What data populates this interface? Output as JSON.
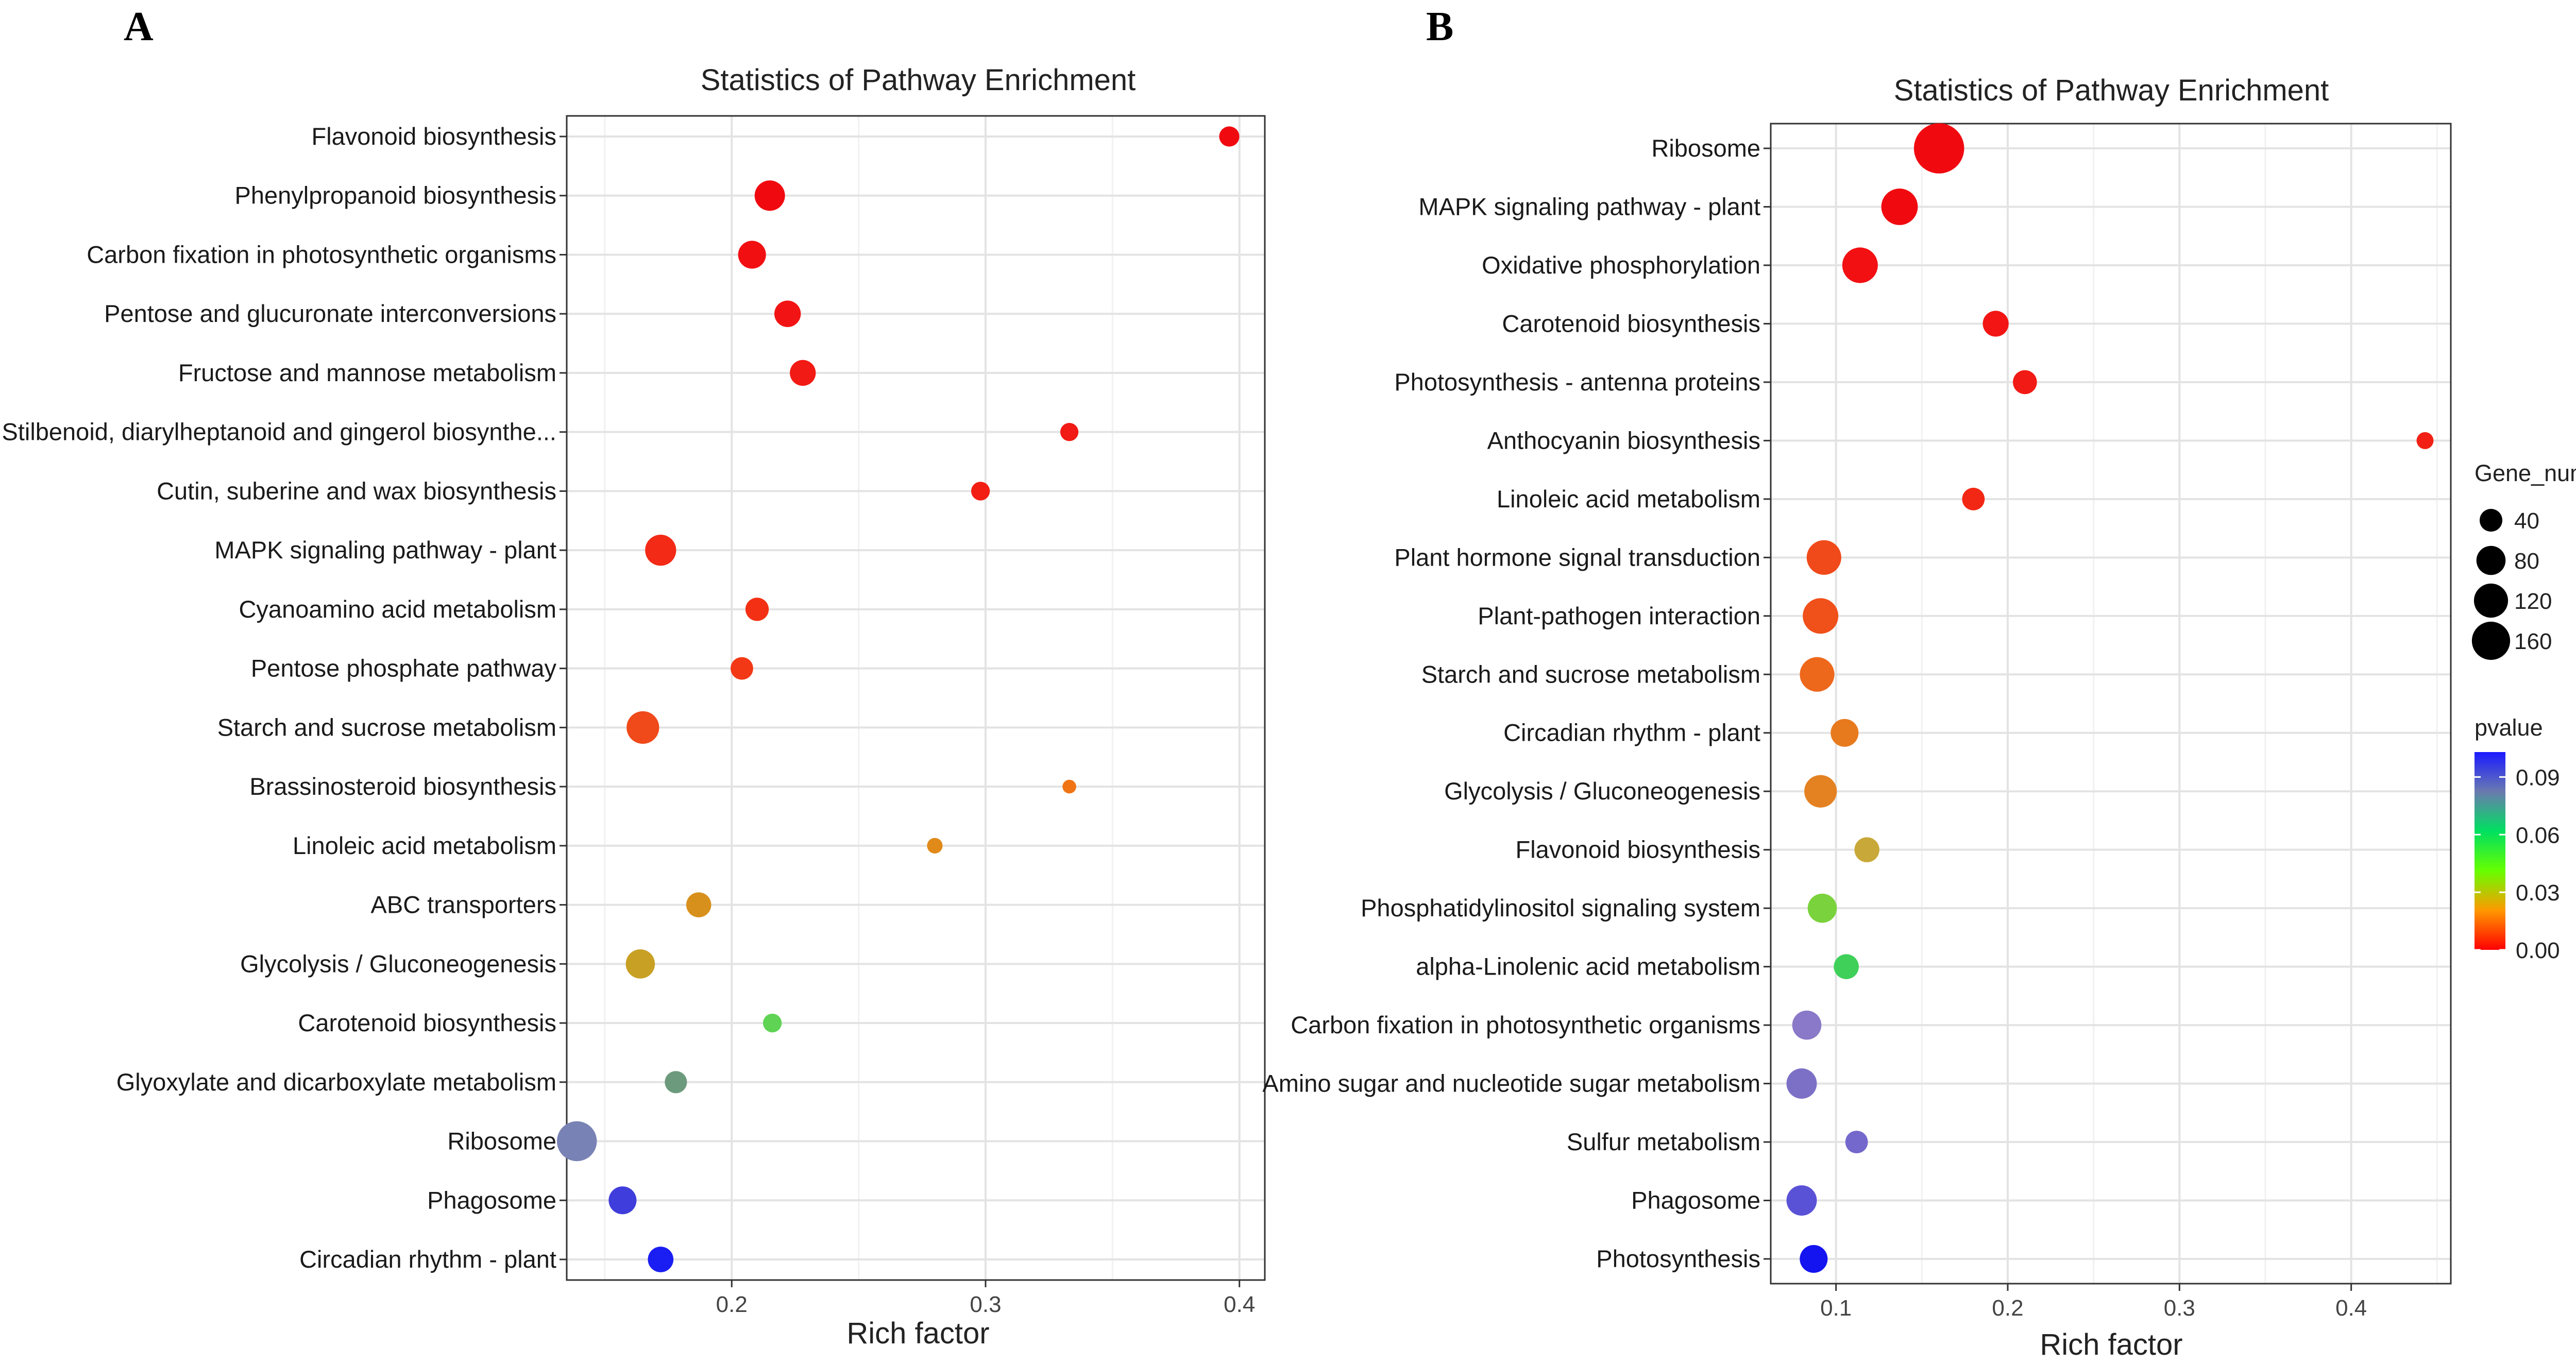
{
  "chart_data": [
    {
      "panel": "A",
      "type": "scatter",
      "title": "Statistics of Pathway Enrichment",
      "xlabel": "Rich factor",
      "ylabel": "",
      "xlim": [
        0.135,
        0.41
      ],
      "xticks": [
        0.2,
        0.3,
        0.4
      ],
      "xtick_labels": [
        "0.2",
        "0.3",
        "0.4"
      ],
      "grid": true,
      "points": [
        {
          "label": "Flavonoid biosynthesis",
          "x": 0.396,
          "gene_number": 12,
          "pvalue": 0.0,
          "color": "#f00a10"
        },
        {
          "label": "Phenylpropanoid biosynthesis",
          "x": 0.215,
          "gene_number": 45,
          "pvalue": 0.0,
          "color": "#f00a10"
        },
        {
          "label": "Carbon fixation in photosynthetic organisms",
          "x": 0.208,
          "gene_number": 35,
          "pvalue": 0.001,
          "color": "#f20f12"
        },
        {
          "label": "Pentose and glucuronate interconversions",
          "x": 0.222,
          "gene_number": 30,
          "pvalue": 0.001,
          "color": "#f21414"
        },
        {
          "label": "Fructose and mannose metabolism",
          "x": 0.228,
          "gene_number": 28,
          "pvalue": 0.002,
          "color": "#f21a14"
        },
        {
          "label": "Stilbenoid, diarylheptanoid and gingerol biosynthe...",
          "x": 0.333,
          "gene_number": 8,
          "pvalue": 0.002,
          "color": "#f21a14"
        },
        {
          "label": "Cutin, suberine and wax biosynthesis",
          "x": 0.298,
          "gene_number": 9,
          "pvalue": 0.003,
          "color": "#f21e14"
        },
        {
          "label": "MAPK signaling pathway - plant",
          "x": 0.172,
          "gene_number": 48,
          "pvalue": 0.005,
          "color": "#f32a16"
        },
        {
          "label": "Cyanoamino acid metabolism",
          "x": 0.21,
          "gene_number": 20,
          "pvalue": 0.006,
          "color": "#f33014"
        },
        {
          "label": "Pentose phosphate pathway",
          "x": 0.204,
          "gene_number": 18,
          "pvalue": 0.007,
          "color": "#f33816"
        },
        {
          "label": "Starch and sucrose metabolism",
          "x": 0.165,
          "gene_number": 55,
          "pvalue": 0.01,
          "color": "#f04a1a"
        },
        {
          "label": "Brassinosteroid biosynthesis",
          "x": 0.333,
          "gene_number": 2,
          "pvalue": 0.02,
          "color": "#f07414"
        },
        {
          "label": "Linoleic acid metabolism",
          "x": 0.28,
          "gene_number": 4,
          "pvalue": 0.025,
          "color": "#e08a1a"
        },
        {
          "label": "ABC transporters",
          "x": 0.187,
          "gene_number": 25,
          "pvalue": 0.03,
          "color": "#d8901c"
        },
        {
          "label": "Glycolysis / Gluconeogenesis",
          "x": 0.164,
          "gene_number": 40,
          "pvalue": 0.035,
          "color": "#c8a024"
        },
        {
          "label": "Carotenoid biosynthesis",
          "x": 0.216,
          "gene_number": 9,
          "pvalue": 0.06,
          "color": "#5ed354"
        },
        {
          "label": "Glyoxylate and dicarboxylate metabolism",
          "x": 0.178,
          "gene_number": 17,
          "pvalue": 0.07,
          "color": "#6c9a7c"
        },
        {
          "label": "Ribosome",
          "x": 0.139,
          "gene_number": 95,
          "pvalue": 0.08,
          "color": "#7882b4"
        },
        {
          "label": "Phagosome",
          "x": 0.157,
          "gene_number": 35,
          "pvalue": 0.095,
          "color": "#3f3ddb"
        },
        {
          "label": "Circadian rhythm - plant",
          "x": 0.172,
          "gene_number": 27,
          "pvalue": 0.1,
          "color": "#1b1ef2"
        }
      ]
    },
    {
      "panel": "B",
      "type": "scatter",
      "title": "Statistics of Pathway Enrichment",
      "xlabel": "Rich factor",
      "ylabel": "",
      "xlim": [
        0.062,
        0.458
      ],
      "xticks": [
        0.1,
        0.2,
        0.3,
        0.4
      ],
      "xtick_labels": [
        "0.1",
        "0.2",
        "0.3",
        "0.4"
      ],
      "grid": true,
      "points": [
        {
          "label": "Ribosome",
          "x": 0.16,
          "gene_number": 170,
          "pvalue": 0.0,
          "color": "#f00a10"
        },
        {
          "label": "MAPK signaling pathway - plant",
          "x": 0.137,
          "gene_number": 75,
          "pvalue": 0.0,
          "color": "#f00a10"
        },
        {
          "label": "Oxidative phosphorylation",
          "x": 0.114,
          "gene_number": 70,
          "pvalue": 0.001,
          "color": "#f21012"
        },
        {
          "label": "Carotenoid biosynthesis",
          "x": 0.193,
          "gene_number": 28,
          "pvalue": 0.002,
          "color": "#f21514"
        },
        {
          "label": "Photosynthesis - antenna proteins",
          "x": 0.21,
          "gene_number": 22,
          "pvalue": 0.003,
          "color": "#f21a14"
        },
        {
          "label": "Anthocyanin biosynthesis",
          "x": 0.443,
          "gene_number": 6,
          "pvalue": 0.004,
          "color": "#f22014"
        },
        {
          "label": "Linoleic acid metabolism",
          "x": 0.18,
          "gene_number": 18,
          "pvalue": 0.005,
          "color": "#f32814"
        },
        {
          "label": "Plant hormone signal transduction",
          "x": 0.093,
          "gene_number": 65,
          "pvalue": 0.01,
          "color": "#f04a1a"
        },
        {
          "label": "Plant-pathogen interaction",
          "x": 0.091,
          "gene_number": 70,
          "pvalue": 0.012,
          "color": "#f0501a"
        },
        {
          "label": "Starch and sucrose metabolism",
          "x": 0.089,
          "gene_number": 65,
          "pvalue": 0.015,
          "color": "#ee681c"
        },
        {
          "label": "Circadian rhythm - plant",
          "x": 0.105,
          "gene_number": 35,
          "pvalue": 0.018,
          "color": "#e87a1e"
        },
        {
          "label": "Glycolysis / Gluconeogenesis",
          "x": 0.091,
          "gene_number": 55,
          "pvalue": 0.02,
          "color": "#e48222"
        },
        {
          "label": "Flavonoid biosynthesis",
          "x": 0.118,
          "gene_number": 25,
          "pvalue": 0.025,
          "color": "#c8a838"
        },
        {
          "label": "Phosphatidylinositol signaling system",
          "x": 0.092,
          "gene_number": 40,
          "pvalue": 0.045,
          "color": "#7ad23c"
        },
        {
          "label": "alpha-Linolenic acid metabolism",
          "x": 0.106,
          "gene_number": 25,
          "pvalue": 0.055,
          "color": "#3fd05a"
        },
        {
          "label": "Carbon fixation in photosynthetic organisms",
          "x": 0.083,
          "gene_number": 40,
          "pvalue": 0.085,
          "color": "#8a78c8"
        },
        {
          "label": "Amino sugar and nucleotide sugar metabolism",
          "x": 0.08,
          "gene_number": 45,
          "pvalue": 0.088,
          "color": "#7c70c6"
        },
        {
          "label": "Sulfur metabolism",
          "x": 0.112,
          "gene_number": 18,
          "pvalue": 0.09,
          "color": "#7468cc"
        },
        {
          "label": "Phagosome",
          "x": 0.08,
          "gene_number": 45,
          "pvalue": 0.095,
          "color": "#5a52d6"
        },
        {
          "label": "Photosynthesis",
          "x": 0.087,
          "gene_number": 35,
          "pvalue": 0.1,
          "color": "#1414f0"
        }
      ]
    }
  ],
  "legend": {
    "size_title": "Gene_number",
    "size_entries": [
      {
        "label": "40",
        "value": 40
      },
      {
        "label": "80",
        "value": 80
      },
      {
        "label": "120",
        "value": 120
      },
      {
        "label": "160",
        "value": 160
      }
    ],
    "color_title": "pvalue",
    "color_ticks": [
      {
        "label": "0.09",
        "value": 0.09
      },
      {
        "label": "0.06",
        "value": 0.06
      },
      {
        "label": "0.03",
        "value": 0.03
      },
      {
        "label": "0.00",
        "value": 0.0
      }
    ],
    "color_range": [
      0.0,
      0.103
    ],
    "gradient_stops": [
      "#ff0000",
      "#ff9900",
      "#66ff00",
      "#00e060",
      "#6a7ab0",
      "#1a1aff"
    ]
  }
}
